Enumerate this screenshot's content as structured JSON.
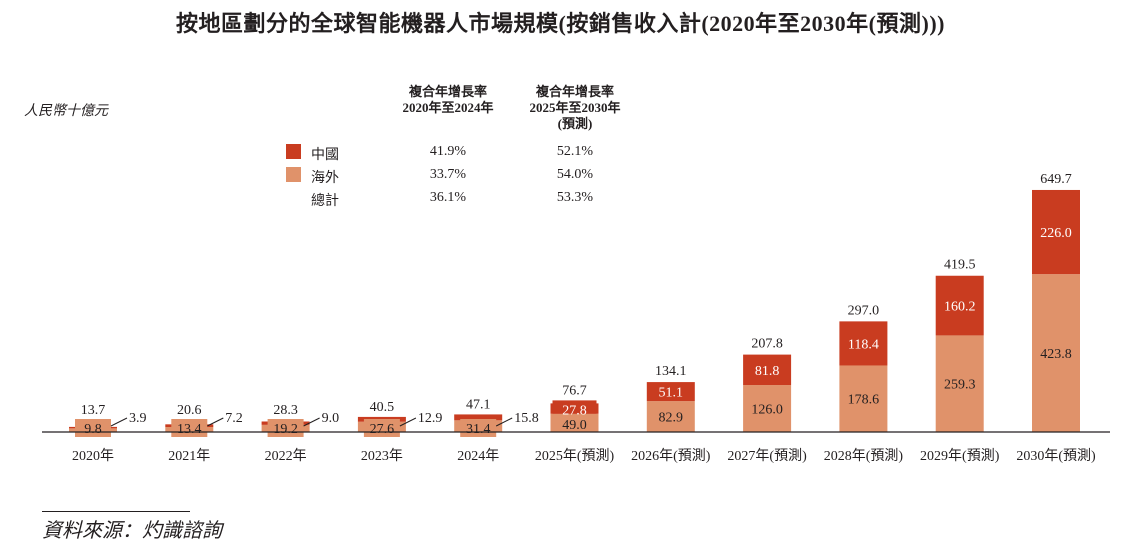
{
  "colors": {
    "china": "#c93c20",
    "overseas": "#e0926a",
    "text": "#231f20",
    "white": "#ffffff"
  },
  "chart_data": {
    "type": "bar",
    "stacked": true,
    "title": "按地區劃分的全球智能機器人市場規模(按銷售收入計(2020年至2030年(預測)))",
    "ylabel": "人民幣十億元",
    "xlabel": "",
    "categories": [
      "2020年",
      "2021年",
      "2022年",
      "2023年",
      "2024年",
      "2025年(預測)",
      "2026年(預測)",
      "2027年(預測)",
      "2028年(預測)",
      "2029年(預測)",
      "2030年(預測)"
    ],
    "series": [
      {
        "name": "海外",
        "values": [
          9.8,
          13.4,
          19.2,
          27.6,
          31.4,
          49.0,
          82.9,
          126.0,
          178.6,
          259.3,
          423.8
        ]
      },
      {
        "name": "中國",
        "values": [
          3.9,
          7.2,
          9.0,
          12.9,
          15.8,
          27.8,
          51.1,
          81.8,
          118.4,
          160.2,
          226.0
        ]
      }
    ],
    "totals": [
      13.7,
      20.6,
      28.3,
      40.5,
      47.1,
      76.7,
      134.1,
      207.8,
      297.0,
      419.5,
      649.7
    ],
    "value_labels": {
      "overseas": [
        "9.8",
        "13.4",
        "19.2",
        "27.6",
        "31.4",
        "49.0",
        "82.9",
        "126.0",
        "178.6",
        "259.3",
        "423.8"
      ],
      "china": [
        "3.9",
        "7.2",
        "9.0",
        "12.9",
        "15.8",
        "27.8",
        "51.1",
        "81.8",
        "118.4",
        "160.2",
        "226.0"
      ],
      "totals": [
        "13.7",
        "20.6",
        "28.3",
        "40.5",
        "47.1",
        "76.7",
        "134.1",
        "207.8",
        "297.0",
        "419.5",
        "649.7"
      ]
    },
    "ylim": [
      0,
      700
    ],
    "grid": false,
    "legend": "top-center"
  },
  "cagr_table": {
    "col1_header": [
      "複合年增長率",
      "2020年至2024年"
    ],
    "col2_header": [
      "複合年增長率",
      "2025年至2030年",
      "(預測)"
    ],
    "rows": [
      {
        "label": "中國",
        "swatch": "china",
        "col1": "41.9%",
        "col2": "52.1%"
      },
      {
        "label": "海外",
        "swatch": "overseas",
        "col1": "33.7%",
        "col2": "54.0%"
      },
      {
        "label": "總計",
        "swatch": "",
        "col1": "36.1%",
        "col2": "53.3%"
      }
    ]
  },
  "source": "資料來源：灼識諮詢"
}
